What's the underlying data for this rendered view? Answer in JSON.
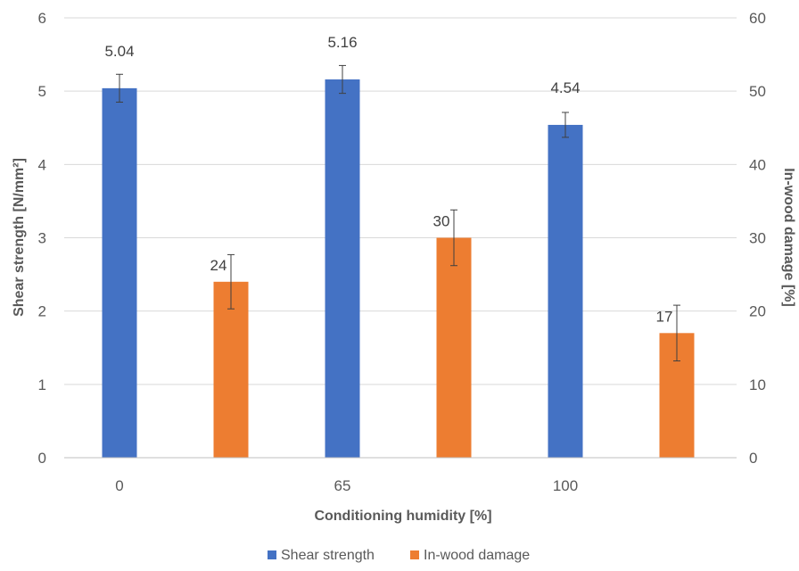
{
  "chart_data": {
    "type": "bar",
    "title": "",
    "xlabel": "Conditioning humidity [%]",
    "ylabel": "Shear strength [N/mm²]",
    "y2label": "In-wood damage [%]",
    "ylim": [
      0,
      6
    ],
    "y2lim": [
      0,
      60
    ],
    "yticks": [
      "0",
      "1",
      "2",
      "3",
      "4",
      "5",
      "6"
    ],
    "y2ticks": [
      "0",
      "10",
      "20",
      "30",
      "40",
      "50",
      "60"
    ],
    "categories": [
      "0",
      "65",
      "100"
    ],
    "grid": true,
    "legend_position": "bottom",
    "series": [
      {
        "name": "Shear strength",
        "axis": "left",
        "color": "#4472C4",
        "values": [
          5.04,
          5.16,
          4.54
        ],
        "labels": [
          "5.04",
          "5.16",
          "4.54"
        ],
        "error": [
          0.19,
          0.19,
          0.17
        ]
      },
      {
        "name": "In-wood damage",
        "axis": "right",
        "color": "#ED7D31",
        "values": [
          24,
          30,
          17
        ],
        "labels": [
          "24",
          "30",
          "17"
        ],
        "error": [
          3.7,
          3.8,
          3.8
        ]
      }
    ]
  }
}
